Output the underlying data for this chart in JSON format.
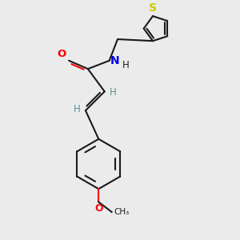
{
  "background_color": "#ebebeb",
  "bond_color": "#1a1a1a",
  "atom_colors": {
    "O": "#ff0000",
    "N": "#0000ee",
    "S": "#cccc00",
    "C": "#1a1a1a",
    "H": "#5a9090"
  },
  "figsize": [
    3.0,
    3.0
  ],
  "dpi": 100,
  "lw": 1.5
}
